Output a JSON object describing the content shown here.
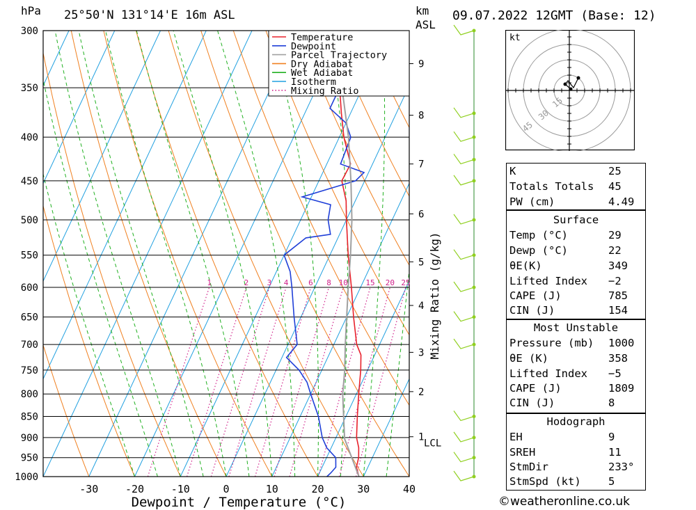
{
  "header": {
    "hpa_unit": "hPa",
    "location": "25°50'N  131°14'E  16m  ASL",
    "km_unit": "km",
    "asl_unit": "ASL",
    "datetime": "09.07.2022  12GMT  (Base: 12)"
  },
  "chart_data": {
    "type": "line",
    "xlabel": "Dewpoint / Temperature (°C)",
    "ylabel_right": "Mixing Ratio (g/kg)",
    "xlim": [
      -40,
      40
    ],
    "plim": [
      1000,
      300
    ],
    "pressure_ticks": [
      300,
      350,
      400,
      450,
      500,
      550,
      600,
      650,
      700,
      750,
      800,
      850,
      900,
      950,
      1000
    ],
    "temperature_ticks": [
      -30,
      -20,
      -10,
      0,
      10,
      20,
      30,
      40
    ],
    "km_ticks": [
      {
        "label": "1",
        "p": 898
      },
      {
        "label": "2",
        "p": 795
      },
      {
        "label": "3",
        "p": 715
      },
      {
        "label": "4",
        "p": 630
      },
      {
        "label": "5",
        "p": 560
      },
      {
        "label": "6",
        "p": 492
      },
      {
        "label": "7",
        "p": 430
      },
      {
        "label": "8",
        "p": 377
      },
      {
        "label": "9",
        "p": 328
      }
    ],
    "lcl": {
      "label": "LCL",
      "p": 903
    },
    "mixing_ratio_labels": [
      "1",
      "2",
      "3",
      "4",
      "6",
      "8",
      "10",
      "15",
      "20",
      "25"
    ],
    "mixing_ratio_values": [
      1,
      2,
      3,
      4,
      6,
      8,
      10,
      15,
      20,
      25
    ],
    "legend": [
      "Temperature",
      "Dewpoint",
      "Parcel Trajectory",
      "Dry Adiabat",
      "Wet Adiabat",
      "Isotherm",
      "Mixing Ratio"
    ],
    "colors": {
      "temperature": "#e8202a",
      "dewpoint": "#1f3fd8",
      "parcel": "#a0a0a0",
      "dry_adiabat": "#f08020",
      "wet_adiabat": "#20b020",
      "isotherm": "#20a0e0",
      "mixing_ratio": "#d0208a",
      "wind": "#90d020"
    },
    "series": [
      {
        "name": "Temperature",
        "points": [
          [
            1000,
            29
          ],
          [
            975,
            27.5
          ],
          [
            950,
            27
          ],
          [
            925,
            26
          ],
          [
            900,
            24.5
          ],
          [
            850,
            22.5
          ],
          [
            800,
            20.5
          ],
          [
            750,
            18.5
          ],
          [
            720,
            17
          ],
          [
            700,
            15
          ],
          [
            650,
            11.5
          ],
          [
            600,
            8
          ],
          [
            550,
            4
          ],
          [
            500,
            0
          ],
          [
            475,
            -2
          ],
          [
            450,
            -5
          ],
          [
            430,
            -4.8
          ],
          [
            400,
            -9
          ],
          [
            375,
            -12
          ],
          [
            350,
            -15
          ],
          [
            325,
            -18
          ],
          [
            300,
            -21
          ]
        ]
      },
      {
        "name": "Dewpoint",
        "points": [
          [
            1000,
            22
          ],
          [
            990,
            22.5
          ],
          [
            975,
            23
          ],
          [
            950,
            22
          ],
          [
            925,
            19
          ],
          [
            900,
            17
          ],
          [
            850,
            14
          ],
          [
            800,
            10
          ],
          [
            775,
            8
          ],
          [
            750,
            5
          ],
          [
            725,
            1
          ],
          [
            700,
            2
          ],
          [
            650,
            -1.5
          ],
          [
            600,
            -5
          ],
          [
            575,
            -7
          ],
          [
            550,
            -10
          ],
          [
            525,
            -7
          ],
          [
            520,
            -2
          ],
          [
            500,
            -4
          ],
          [
            480,
            -5
          ],
          [
            470,
            -12
          ],
          [
            450,
            -2
          ],
          [
            440,
            -1
          ],
          [
            430,
            -7
          ],
          [
            400,
            -7.5
          ],
          [
            385,
            -10
          ],
          [
            370,
            -15
          ],
          [
            350,
            -15
          ],
          [
            325,
            -14
          ],
          [
            312,
            -10
          ],
          [
            300,
            -5
          ]
        ]
      },
      {
        "name": "Parcel Trajectory",
        "points": [
          [
            1000,
            29
          ],
          [
            950,
            25.5
          ],
          [
            903,
            22
          ],
          [
            850,
            19.5
          ],
          [
            800,
            17
          ],
          [
            750,
            15
          ],
          [
            700,
            12.5
          ],
          [
            650,
            10
          ],
          [
            600,
            7.3
          ],
          [
            550,
            4.5
          ],
          [
            500,
            1.2
          ],
          [
            450,
            -3
          ],
          [
            400,
            -8
          ],
          [
            380,
            -10.5
          ],
          [
            350,
            -14.5
          ],
          [
            330,
            -17.5
          ]
        ]
      }
    ],
    "wind_barbs_p": [
      1000,
      950,
      900,
      850,
      700,
      650,
      600,
      550,
      500,
      450,
      425,
      400,
      375,
      300
    ]
  },
  "hodograph": {
    "unit": "kt",
    "ring_labels": [
      "15",
      "30",
      "45"
    ]
  },
  "indices": [
    {
      "label": "K",
      "value": "25"
    },
    {
      "label": "Totals Totals",
      "value": "45"
    },
    {
      "label": "PW (cm)",
      "value": "4.49"
    }
  ],
  "surface": {
    "title": "Surface",
    "rows": [
      {
        "label": "Temp (°C)",
        "value": "29"
      },
      {
        "label": "Dewp (°C)",
        "value": "22"
      },
      {
        "label": "θE(K)",
        "value": "349"
      },
      {
        "label": "Lifted Index",
        "value": "−2"
      },
      {
        "label": "CAPE (J)",
        "value": "785"
      },
      {
        "label": "CIN (J)",
        "value": "154"
      }
    ]
  },
  "most_unstable": {
    "title": "Most Unstable",
    "rows": [
      {
        "label": "Pressure (mb)",
        "value": "1000"
      },
      {
        "label": "θE (K)",
        "value": "358"
      },
      {
        "label": "Lifted Index",
        "value": "−5"
      },
      {
        "label": "CAPE (J)",
        "value": "1809"
      },
      {
        "label": "CIN (J)",
        "value": "8"
      }
    ]
  },
  "hodograph_table": {
    "title": "Hodograph",
    "rows": [
      {
        "label": "EH",
        "value": "9"
      },
      {
        "label": "SREH",
        "value": "11"
      },
      {
        "label": "StmDir",
        "value": "233°"
      },
      {
        "label": "StmSpd (kt)",
        "value": "5"
      }
    ]
  },
  "footer": {
    "copyright": "©weatheronline.co.uk"
  }
}
